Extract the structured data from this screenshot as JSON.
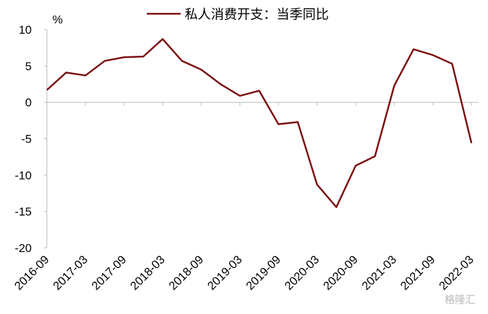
{
  "chart_data": {
    "type": "line",
    "y_unit": "%",
    "watermark": "格隆汇",
    "categories": [
      "2016-09",
      null,
      "2017-03",
      null,
      "2017-09",
      null,
      "2018-03",
      null,
      "2018-09",
      null,
      "2019-03",
      null,
      "2019-09",
      null,
      "2020-03",
      null,
      "2020-09",
      null,
      "2021-03",
      null,
      "2021-09",
      null,
      "2022-03"
    ],
    "series": [
      {
        "name": "私人消费开支：当季同比",
        "color": "#7b0c0c",
        "values": [
          1.7,
          4.1,
          3.7,
          5.7,
          6.2,
          6.3,
          8.7,
          5.7,
          4.5,
          2.5,
          0.9,
          1.6,
          -3.0,
          -2.7,
          -11.3,
          -14.4,
          -8.7,
          -7.4,
          2.3,
          7.3,
          6.5,
          5.3,
          -5.6
        ]
      }
    ],
    "ylim": [
      -20,
      10
    ],
    "yticks": [
      -20,
      -15,
      -10,
      -5,
      0,
      5,
      10
    ],
    "legend": "top"
  }
}
